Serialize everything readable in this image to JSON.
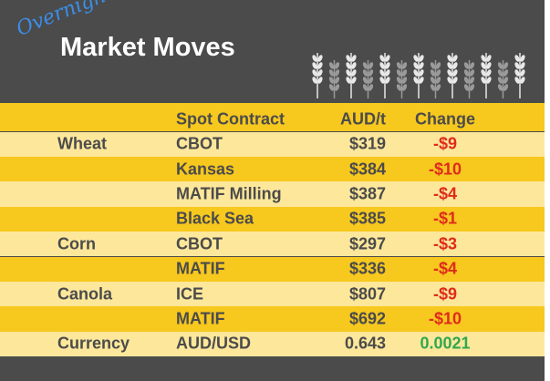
{
  "header": {
    "kicker": "Overnight",
    "title": "Market Moves"
  },
  "table": {
    "columns": [
      "Spot Contract",
      "AUD/t",
      "Change"
    ],
    "rows": [
      {
        "group": "Wheat",
        "contract": "CBOT",
        "price": "$319",
        "change": "-$9"
      },
      {
        "contract": "Kansas",
        "price": "$384",
        "change": "-$10"
      },
      {
        "contract": "MATIF Milling",
        "price": "$387",
        "change": "-$4"
      },
      {
        "contract": "Black Sea",
        "price": "$385",
        "change": "-$1"
      },
      {
        "group": "Corn",
        "contract": "CBOT",
        "price": "$297",
        "change": "-$3"
      },
      {
        "contract": "MATIF",
        "price": "$336",
        "change": "-$4"
      },
      {
        "group": "Canola",
        "contract": "ICE",
        "price": "$807",
        "change": "-$9"
      },
      {
        "contract": "MATIF",
        "price": "$692",
        "change": "-$10"
      },
      {
        "group": "Currency",
        "contract": "AUD/USD",
        "price": "0.643",
        "change": "0.0021"
      }
    ]
  }
}
